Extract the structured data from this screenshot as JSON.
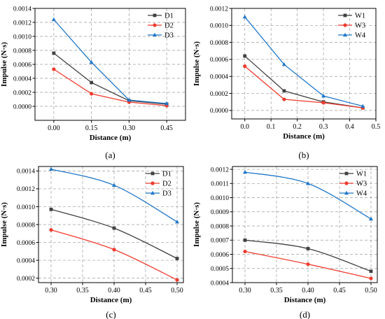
{
  "colors": {
    "D1": "#404040",
    "D2": "#ef3b2f",
    "D3": "#1f77c8",
    "W1": "#404040",
    "W3": "#ef3b2f",
    "W4": "#1f77c8"
  },
  "chart_data": [
    {
      "type": "line",
      "panel_label": "(a)",
      "xlabel": "Distance (m)",
      "ylabel": "Impulse (N·s)",
      "xlim": [
        -0.075,
        0.525
      ],
      "ylim": [
        -0.0002,
        0.0014
      ],
      "xticks": [
        0.0,
        0.15,
        0.3,
        0.45
      ],
      "xtick_labels": [
        "0.00",
        "0.15",
        "0.30",
        "0.45"
      ],
      "yticks": [
        0.0,
        0.0002,
        0.0004,
        0.0006,
        0.0008,
        0.001,
        0.0012,
        0.0014
      ],
      "ytick_labels": [
        "0.0000",
        "0.0002",
        "0.0004",
        "0.0006",
        "0.0008",
        "0.0010",
        "0.0012",
        "0.0014"
      ],
      "grid": true,
      "smooth": false,
      "legend_position": "top-right",
      "x": [
        0.0,
        0.15,
        0.3,
        0.45
      ],
      "series": [
        {
          "name": "D1",
          "color": "#404040",
          "marker": "square",
          "values": [
            0.00076,
            0.00034,
            8e-05,
            3e-05
          ]
        },
        {
          "name": "D2",
          "color": "#ef3b2f",
          "marker": "circle",
          "values": [
            0.00053,
            0.00018,
            6e-05,
            1e-05
          ]
        },
        {
          "name": "D3",
          "color": "#1f77c8",
          "marker": "triangle",
          "values": [
            0.00124,
            0.00063,
            9e-05,
            4e-05
          ]
        }
      ]
    },
    {
      "type": "line",
      "panel_label": "(b)",
      "xlabel": "Distance (m)",
      "ylabel": "Impulse (N·s)",
      "xlim": [
        -0.05,
        0.5
      ],
      "ylim": [
        -0.0001,
        0.0012
      ],
      "xticks": [
        0.0,
        0.1,
        0.2,
        0.3,
        0.4,
        0.5
      ],
      "xtick_labels": [
        "0.0",
        "0.1",
        "0.2",
        "0.3",
        "0.4",
        "0.5"
      ],
      "yticks": [
        0.0,
        0.0002,
        0.0004,
        0.0006,
        0.0008,
        0.001,
        0.0012
      ],
      "ytick_labels": [
        "0.0000",
        "0.0002",
        "0.0004",
        "0.0006",
        "0.0008",
        "0.0010",
        "0.0012"
      ],
      "grid": true,
      "smooth": false,
      "legend_position": "top-right",
      "x": [
        0.0,
        0.15,
        0.3,
        0.45
      ],
      "series": [
        {
          "name": "W1",
          "color": "#404040",
          "marker": "square",
          "values": [
            0.00064,
            0.00023,
            0.0001,
            3e-05
          ]
        },
        {
          "name": "W3",
          "color": "#ef3b2f",
          "marker": "circle",
          "values": [
            0.00052,
            0.00013,
            9e-05,
            3e-05
          ]
        },
        {
          "name": "W4",
          "color": "#1f77c8",
          "marker": "triangle",
          "values": [
            0.0011,
            0.00054,
            0.00017,
            5e-05
          ]
        }
      ]
    },
    {
      "type": "line",
      "panel_label": "(c)",
      "xlabel": "Distance (m)",
      "ylabel": "Impulse (N·s)",
      "xlim": [
        0.28,
        0.51
      ],
      "ylim": [
        0.00015,
        0.00145
      ],
      "xticks": [
        0.3,
        0.35,
        0.4,
        0.45,
        0.5
      ],
      "xtick_labels": [
        "0.30",
        "0.35",
        "0.40",
        "0.45",
        "0.50"
      ],
      "yticks": [
        0.0002,
        0.0004,
        0.0006,
        0.0008,
        0.001,
        0.0012,
        0.0014
      ],
      "ytick_labels": [
        "0.0002",
        "0.0004",
        "0.0006",
        "0.0008",
        "0.0010",
        "0.0012",
        "0.0014"
      ],
      "grid": true,
      "smooth": true,
      "legend_position": "top-right",
      "x": [
        0.3,
        0.4,
        0.5
      ],
      "series": [
        {
          "name": "D1",
          "color": "#404040",
          "marker": "square",
          "values": [
            0.00097,
            0.00076,
            0.00042
          ]
        },
        {
          "name": "D2",
          "color": "#ef3b2f",
          "marker": "circle",
          "values": [
            0.00074,
            0.00052,
            0.00018
          ]
        },
        {
          "name": "D3",
          "color": "#1f77c8",
          "marker": "triangle",
          "values": [
            0.00142,
            0.00124,
            0.00083
          ]
        }
      ]
    },
    {
      "type": "line",
      "panel_label": "(d)",
      "xlabel": "Distance (m)",
      "ylabel": "Impulse (N·s)",
      "xlim": [
        0.28,
        0.51
      ],
      "ylim": [
        0.0004,
        0.00122
      ],
      "xticks": [
        0.3,
        0.35,
        0.4,
        0.45,
        0.5
      ],
      "xtick_labels": [
        "0.30",
        "0.35",
        "0.40",
        "0.45",
        "0.50"
      ],
      "yticks": [
        0.0004,
        0.0005,
        0.0006,
        0.0007,
        0.0008,
        0.0009,
        0.001,
        0.0011,
        0.0012
      ],
      "ytick_labels": [
        "0.0004",
        "0.0005",
        "0.0006",
        "0.0007",
        "0.0008",
        "0.0009",
        "0.0010",
        "0.0011",
        "0.0012"
      ],
      "grid": true,
      "smooth": true,
      "legend_position": "top-right",
      "x": [
        0.3,
        0.4,
        0.5
      ],
      "series": [
        {
          "name": "W1",
          "color": "#404040",
          "marker": "square",
          "values": [
            0.0007,
            0.00064,
            0.00048
          ]
        },
        {
          "name": "W3",
          "color": "#ef3b2f",
          "marker": "circle",
          "values": [
            0.00062,
            0.00053,
            0.00043
          ]
        },
        {
          "name": "W4",
          "color": "#1f77c8",
          "marker": "triangle",
          "values": [
            0.00118,
            0.0011,
            0.00085
          ]
        }
      ]
    }
  ]
}
